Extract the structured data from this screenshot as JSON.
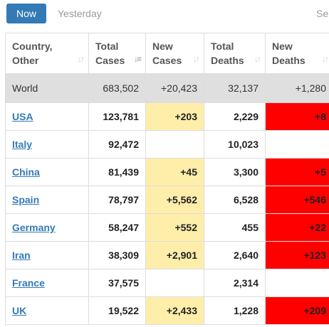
{
  "tabs": {
    "now": "Now",
    "yesterday": "Yesterday",
    "more": "Se"
  },
  "table": {
    "headers": {
      "country": [
        "Country,",
        "Other"
      ],
      "total_cases": [
        "Total",
        "Cases"
      ],
      "new_cases": [
        "New",
        "Cases"
      ],
      "total_deaths": [
        "Total",
        "Deaths"
      ],
      "new_deaths": [
        "New",
        "Deaths"
      ]
    },
    "sort_icon": "sort-arrows-icon",
    "world": {
      "country": "World",
      "total_cases": "683,502",
      "new_cases": "+20,423",
      "total_deaths": "32,137",
      "new_deaths": "+1,280"
    },
    "rows": [
      {
        "country": "USA",
        "total_cases": "123,781",
        "new_cases": "+203",
        "total_deaths": "2,229",
        "new_deaths": "+8"
      },
      {
        "country": "Italy",
        "total_cases": "92,472",
        "new_cases": "",
        "total_deaths": "10,023",
        "new_deaths": ""
      },
      {
        "country": "China",
        "total_cases": "81,439",
        "new_cases": "+45",
        "total_deaths": "3,300",
        "new_deaths": "+5"
      },
      {
        "country": "Spain",
        "total_cases": "78,797",
        "new_cases": "+5,562",
        "total_deaths": "6,528",
        "new_deaths": "+546"
      },
      {
        "country": "Germany",
        "total_cases": "58,247",
        "new_cases": "+552",
        "total_deaths": "455",
        "new_deaths": "+22"
      },
      {
        "country": "Iran",
        "total_cases": "38,309",
        "new_cases": "+2,901",
        "total_deaths": "2,640",
        "new_deaths": "+123"
      },
      {
        "country": "France",
        "total_cases": "37,575",
        "new_cases": "",
        "total_deaths": "2,314",
        "new_deaths": ""
      },
      {
        "country": "UK",
        "total_cases": "19,522",
        "new_cases": "+2,433",
        "total_deaths": "1,228",
        "new_deaths": "+209"
      }
    ]
  },
  "colors": {
    "tab_active": "#337ab7",
    "new_cases_highlight": "#ffeeaa",
    "new_deaths_highlight": "#ff0000",
    "world_row": "#dfdfdf",
    "link": "#337ab7"
  }
}
